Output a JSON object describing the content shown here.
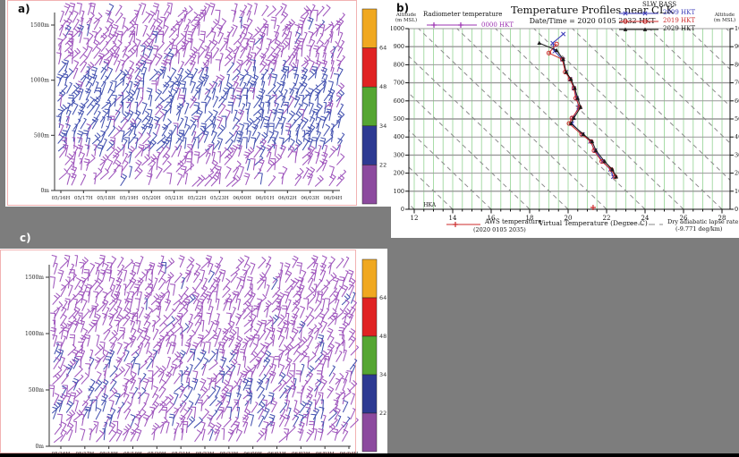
{
  "colors": {
    "background": "#7d7d7d",
    "panel_border_pink": "#f2b2b2",
    "barb_purple": "#9f57bd",
    "barb_blue": "#4553b0",
    "grid_green": "#a8dca8",
    "grid_gray": "#999999",
    "adiabat_gray": "#8a8a8a",
    "axis_black": "#222222"
  },
  "colorbar": {
    "labels": [
      "64",
      "48",
      "34",
      "22"
    ],
    "colors": [
      "#f0a820",
      "#e02222",
      "#55a632",
      "#2d3a92",
      "#8c4a9e"
    ]
  },
  "panel_a": {
    "label": "a)",
    "y_tick_labels": [
      "1500m",
      "1000m",
      "500m",
      "0m"
    ],
    "x_tick_labels": [
      "05/16H",
      "05/17H",
      "05/18H",
      "05/19H",
      "05/20H",
      "05/21H",
      "05/22H",
      "05/23H",
      "06/00H",
      "06/01H",
      "06/02H",
      "06/03H",
      "06/04H"
    ]
  },
  "panel_c": {
    "label": "c)",
    "y_tick_labels": [
      "1500m",
      "1000m",
      "500m",
      "0m"
    ],
    "x_tick_labels": [
      "05/16H",
      "05/17H",
      "05/18H",
      "05/19H",
      "05/20H",
      "05/21H",
      "05/22H",
      "05/23H",
      "06/00H",
      "06/01H",
      "06/02H",
      "06/03H",
      "06/04H"
    ]
  },
  "panel_b": {
    "label": "b)",
    "title": "Temperature Profiles near CLK",
    "subtitle": "Date/Time = 2020 0105 2032 HKT",
    "alt_label_line1": "Altitude",
    "alt_label_line2": "(m MSL)",
    "radiometer_legend": {
      "name": "Radiometer temperature",
      "time": "0000 HKT",
      "color": "#9b30b0"
    },
    "rass_legend": {
      "title": "SLW RASS",
      "items": [
        {
          "label": "2009 HKT",
          "color": "#3a3ab8",
          "marker": "x"
        },
        {
          "label": "2019 HKT",
          "color": "#cc2a2a",
          "marker": "circle"
        },
        {
          "label": "2029 HKT",
          "color": "#1a1a1a",
          "marker": "triangle"
        }
      ]
    },
    "aws_legend": {
      "line1": "AWS temperature",
      "line2": "(2020 0105 2035)",
      "color": "#cc2a2a"
    },
    "xlabel": "Virtual Temperature (Degree C)",
    "adiabat_legend": {
      "line1": "Dry adiabatic lapse rate",
      "line2": "(-9.771 deg/km)"
    },
    "station_label": "HKA"
  },
  "chart_data": [
    {
      "panel": "a",
      "type": "wind-barb-time-height",
      "x_categories": [
        "05/16H",
        "05/17H",
        "05/18H",
        "05/19H",
        "05/20H",
        "05/21H",
        "05/22H",
        "05/23H",
        "06/00H",
        "06/01H",
        "06/02H",
        "06/03H",
        "06/04H"
      ],
      "y_ticks_m": [
        0,
        500,
        1000,
        1500
      ],
      "speed_scale": {
        "boundaries": [
          22,
          34,
          48,
          64
        ],
        "band_colors": [
          "#8c4a9e",
          "#2d3a92",
          "#55a632",
          "#e02222",
          "#f0a820"
        ]
      },
      "legend_note": "hourly wind barbs; mostly <22 (purple) with a 22-34 (blue) band in mid and lower levels"
    },
    {
      "panel": "b",
      "type": "line",
      "title": "Temperature Profiles near CLK",
      "subtitle": "Date/Time = 2020 0105 2032 HKT",
      "xlabel": "Virtual Temperature (Degree C)",
      "ylabel_left": "Altitude (m MSL)",
      "ylabel_right": "Altitude (m MSL)",
      "xlim": [
        11.7,
        28.4
      ],
      "ylim": [
        0,
        1000
      ],
      "x_ticks": [
        12,
        14,
        16,
        18,
        20,
        22,
        24,
        26,
        28
      ],
      "x_minor_step": 0.5,
      "y_ticks": [
        0,
        100,
        200,
        300,
        400,
        500,
        600,
        700,
        800,
        900,
        1000
      ],
      "series": [
        {
          "name": "SLW RASS 2009 HKT",
          "color": "#3a3ab8",
          "marker": "x",
          "points": [
            [
              22.35,
              180
            ],
            [
              22.2,
              220
            ],
            [
              21.8,
              265
            ],
            [
              21.4,
              325
            ],
            [
              21.15,
              375
            ],
            [
              20.75,
              415
            ],
            [
              20.2,
              475
            ],
            [
              20.25,
              505
            ],
            [
              20.55,
              565
            ],
            [
              20.45,
              615
            ],
            [
              20.3,
              670
            ],
            [
              20.1,
              720
            ],
            [
              19.9,
              760
            ],
            [
              19.7,
              830
            ],
            [
              19.3,
              875
            ],
            [
              19.2,
              920
            ],
            [
              19.75,
              970
            ]
          ]
        },
        {
          "name": "SLW RASS 2019 HKT",
          "color": "#cc2a2a",
          "marker": "circle",
          "points": [
            [
              22.45,
              180
            ],
            [
              22.25,
              220
            ],
            [
              21.75,
              265
            ],
            [
              21.35,
              325
            ],
            [
              21.2,
              375
            ],
            [
              20.7,
              415
            ],
            [
              20.05,
              475
            ],
            [
              20.2,
              505
            ],
            [
              20.6,
              565
            ],
            [
              20.4,
              615
            ],
            [
              20.3,
              670
            ],
            [
              20.1,
              720
            ],
            [
              19.85,
              760
            ],
            [
              19.7,
              830
            ],
            [
              19.0,
              865
            ],
            [
              19.4,
              915
            ]
          ]
        },
        {
          "name": "SLW RASS 2029 HKT",
          "color": "#1a1a1a",
          "marker": "triangle",
          "points": [
            [
              22.5,
              180
            ],
            [
              22.3,
              220
            ],
            [
              21.9,
              265
            ],
            [
              21.45,
              325
            ],
            [
              21.25,
              375
            ],
            [
              20.8,
              415
            ],
            [
              20.15,
              475
            ],
            [
              20.3,
              505
            ],
            [
              20.65,
              565
            ],
            [
              20.5,
              615
            ],
            [
              20.35,
              670
            ],
            [
              20.15,
              720
            ],
            [
              19.9,
              760
            ],
            [
              19.75,
              830
            ],
            [
              19.4,
              880
            ],
            [
              18.5,
              920
            ]
          ]
        },
        {
          "name": "Radiometer temperature 0000 HKT",
          "color": "#9b30b0",
          "marker": "plus",
          "points": []
        },
        {
          "name": "AWS temperature (2020 0105 2035)",
          "color": "#cc2a2a",
          "marker": "plus",
          "points": [
            [
              21.3,
              0
            ]
          ]
        }
      ],
      "reference": {
        "label": "Dry adiabatic lapse rate",
        "value": "-9.771 deg/km",
        "line_style": "dashed"
      },
      "annotations": [
        {
          "text": "HKA",
          "x": 12.8,
          "y": 25
        }
      ],
      "grid": {
        "vertical_green_step_degC": 0.5,
        "horizontal_gray_step_m": 100
      }
    },
    {
      "panel": "c",
      "type": "wind-barb-time-height",
      "x_categories": [
        "05/16H",
        "05/17H",
        "05/18H",
        "05/19H",
        "05/20H",
        "05/21H",
        "05/22H",
        "05/23H",
        "06/00H",
        "06/01H",
        "06/02H",
        "06/03H",
        "06/04H"
      ],
      "y_ticks_m": [
        0,
        500,
        1000,
        1500
      ],
      "speed_scale": {
        "boundaries": [
          22,
          34,
          48,
          64
        ],
        "band_colors": [
          "#8c4a9e",
          "#2d3a92",
          "#55a632",
          "#e02222",
          "#f0a820"
        ]
      },
      "legend_note": "hourly wind barbs; mostly <22 (purple) with scattered 22-34 (blue) patches in lower levels"
    }
  ]
}
